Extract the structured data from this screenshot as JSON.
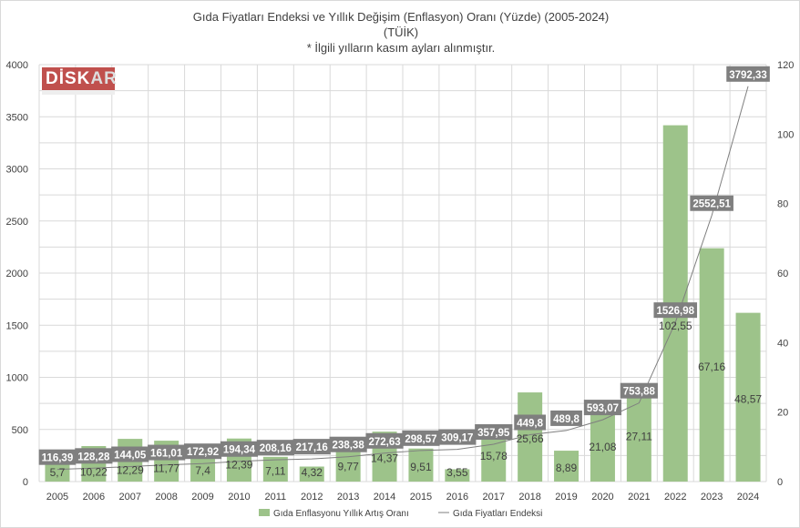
{
  "chart_data": {
    "type": "bar+line",
    "title": "Gıda Fiyatları Endeksi ve Yıllık Değişim (Enflasyon) Oranı (Yüzde) (2005-2024)",
    "subtitle": "(TÜİK)",
    "note": "* İlgili yılların kasım ayları alınmıştır.",
    "categories": [
      "2005",
      "2006",
      "2007",
      "2008",
      "2009",
      "2010",
      "2011",
      "2012",
      "2013",
      "2014",
      "2015",
      "2016",
      "2017",
      "2018",
      "2019",
      "2020",
      "2021",
      "2022",
      "2023",
      "2024"
    ],
    "series": [
      {
        "name": "Gıda Enflasyonu Yıllık Artış Oranı",
        "type": "bar",
        "axis": "right",
        "color": "#9dc38a",
        "values": [
          5.7,
          10.22,
          12.29,
          11.77,
          7.4,
          12.39,
          7.11,
          4.32,
          9.77,
          14.37,
          9.51,
          3.55,
          15.78,
          25.66,
          8.89,
          21.08,
          27.11,
          102.55,
          67.16,
          48.57
        ],
        "labels": [
          "5,7",
          "10,22",
          "12,29",
          "11,77",
          "7,4",
          "12,39",
          "7,11",
          "4,32",
          "9,77",
          "14,37",
          "9,51",
          "3,55",
          "15,78",
          "25,66",
          "8,89",
          "21,08",
          "27,11",
          "102,55",
          "67,16",
          "48,57"
        ]
      },
      {
        "name": "Gıda Fiyatları Endeksi",
        "type": "line",
        "axis": "left",
        "color": "#7f7f7f",
        "values": [
          116.39,
          128.28,
          144.05,
          161.01,
          172.92,
          194.34,
          208.16,
          217.16,
          238.38,
          272.63,
          298.57,
          309.17,
          357.95,
          449.8,
          489.8,
          593.07,
          753.88,
          1526.98,
          2552.51,
          3792.33
        ],
        "labels": [
          "116,39",
          "128,28",
          "144,05",
          "161,01",
          "172,92",
          "194,34",
          "208,16",
          "217,16",
          "238,38",
          "272,63",
          "298,57",
          "309,17",
          "357,95",
          "449,8",
          "489,8",
          "593,07",
          "753,88",
          "1526,98",
          "2552,51",
          "3792,33"
        ]
      }
    ],
    "left_axis": {
      "min": 0,
      "max": 4000,
      "ticks": [
        "0",
        "500",
        "1000",
        "1500",
        "2000",
        "2500",
        "3000",
        "3500",
        "4000"
      ]
    },
    "right_axis": {
      "min": 0,
      "max": 120,
      "ticks": [
        "0",
        "20",
        "40",
        "60",
        "80",
        "100",
        "120"
      ]
    },
    "legend": "bottom",
    "logo_text": "DİSKAR"
  }
}
